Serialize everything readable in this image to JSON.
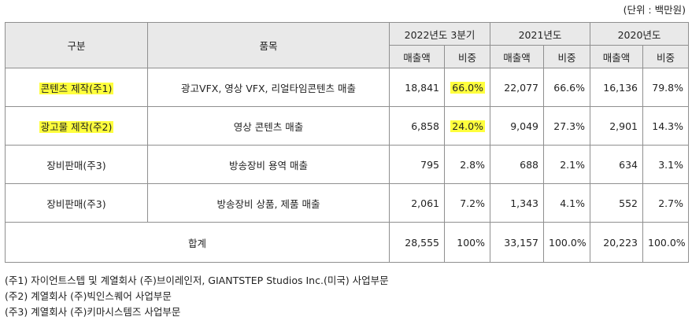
{
  "unit_label": "(단위 : 백만원)",
  "headers": {
    "category": "구분",
    "item": "품목",
    "periods": [
      "2022년도 3분기",
      "2021년도",
      "2020년도"
    ],
    "sales": "매출액",
    "ratio": "비중"
  },
  "rows": [
    {
      "category": "콘텐츠 제작(주1)",
      "item": "광고VFX, 영상 VFX, 리얼타임콘텐츠 매출",
      "v2022": "18,841",
      "r2022": "66.0%",
      "v2021": "22,077",
      "r2021": "66.6%",
      "v2020": "16,136",
      "r2020": "79.8%"
    },
    {
      "category": "광고물 제작(주2)",
      "item": "영상 콘텐츠 매출",
      "v2022": "6,858",
      "r2022": "24.0%",
      "v2021": "9,049",
      "r2021": "27.3%",
      "v2020": "2,901",
      "r2020": "14.3%"
    },
    {
      "category": "장비판매(주3)",
      "item": "방송장비 용역 매출",
      "v2022": "795",
      "r2022": "2.8%",
      "v2021": "688",
      "r2021": "2.1%",
      "v2020": "634",
      "r2020": "3.1%"
    },
    {
      "category": "장비판매(주3)",
      "item": "방송장비 상품, 제품 매출",
      "v2022": "2,061",
      "r2022": "7.2%",
      "v2021": "1,343",
      "r2021": "4.1%",
      "v2020": "552",
      "r2020": "2.7%"
    }
  ],
  "total": {
    "label": "합계",
    "v2022": "28,555",
    "r2022": "100%",
    "v2021": "33,157",
    "r2021": "100.0%",
    "v2020": "20,223",
    "r2020": "100.0%"
  },
  "notes": [
    "(주1) 자이언트스텝 및 계열회사 (주)브이레인저, GIANTSTEP Studios Inc.(미국) 사업부문",
    "(주2) 계열회사 (주)빅인스퀘어 사업부문",
    "(주3) 계열회사 (주)키마시스템즈 사업부문"
  ],
  "highlight_color": "#ffff3d"
}
